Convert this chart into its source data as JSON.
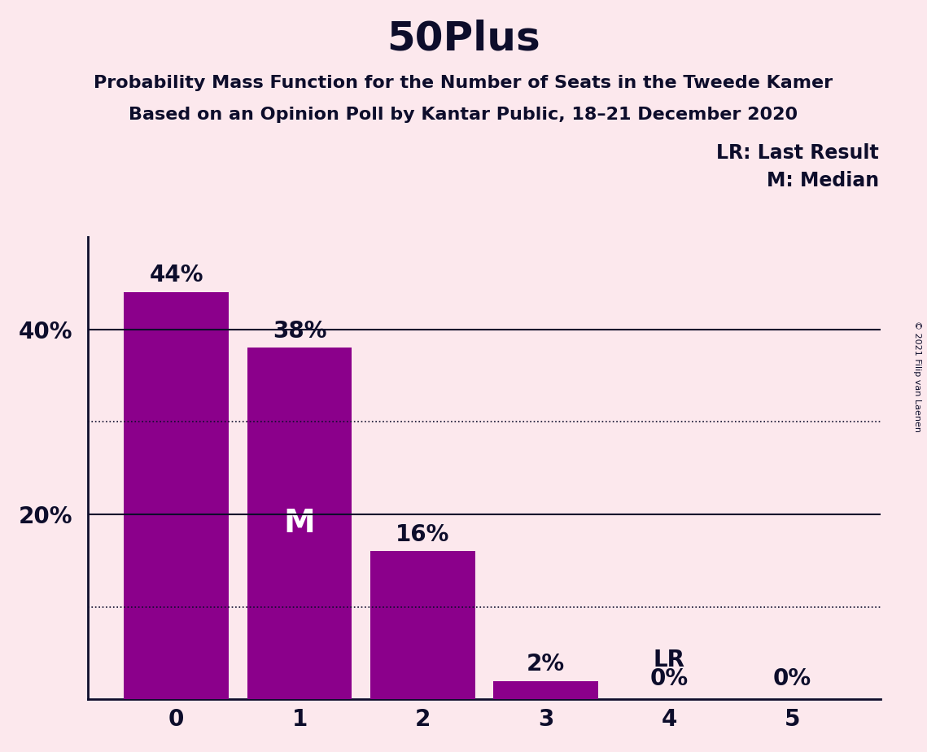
{
  "title": "50Plus",
  "subtitle1": "Probability Mass Function for the Number of Seats in the Tweede Kamer",
  "subtitle2": "Based on an Opinion Poll by Kantar Public, 18–21 December 2020",
  "copyright": "© 2021 Filip van Laenen",
  "categories": [
    0,
    1,
    2,
    3,
    4,
    5
  ],
  "values": [
    44,
    38,
    16,
    2,
    0,
    0
  ],
  "bar_color": "#8B008B",
  "background_color": "#fce8ed",
  "text_color": "#0d0d2b",
  "yticks": [
    20,
    40
  ],
  "dotted_lines": [
    30,
    10
  ],
  "solid_lines": [
    40,
    20
  ],
  "median_seat": 1,
  "lr_seat": 4,
  "legend_lr": "LR: Last Result",
  "legend_m": "M: Median",
  "ylim": [
    0,
    50
  ],
  "title_fontsize": 36,
  "subtitle_fontsize": 16,
  "tick_fontsize": 20,
  "bar_label_fontsize": 20,
  "legend_fontsize": 17,
  "median_fontsize": 28,
  "annotation_fontsize": 20,
  "copyright_fontsize": 8
}
